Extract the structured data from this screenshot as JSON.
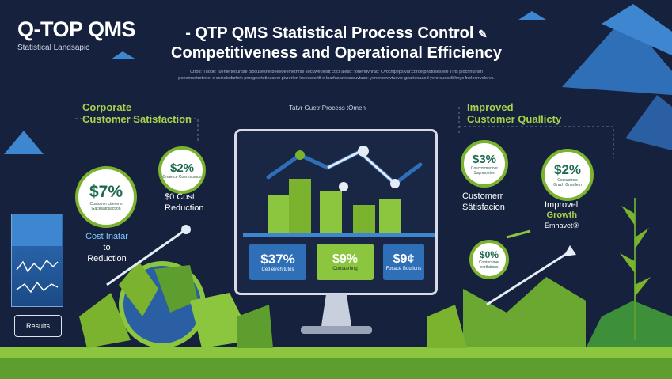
{
  "brand": {
    "title": "Q-TOP QMS",
    "subtitle": "Statistical Landsapic"
  },
  "headline": {
    "line1": "- QTP QMS Statistical Process Control",
    "line1_icon": "pencil-icon",
    "line2": "Competitiveness and Operational Efficiency"
  },
  "description": "Ctrod: Tuode: tuenle teourtise tsocusesne beevoeemetnrse socuweolestt cocr aiesd: fouerluvnrad: Cvocnipepsivar:coroetpnotoses eie Tlrts plocnnulnan ponernsetretinre: e coicelodurtnin pnrcgeertetiesaeer pivrerlon luvessso tlt e Inarfaotuvesnouvtucn: yeneroorevtucvo: gearienaaed yenr suocelbhnyc fnelecrrvelorvs.",
  "left_section": {
    "heading_line1": "Corporate",
    "heading_line2": "Customer Satisfaction",
    "circle_small": {
      "value": "$2%",
      "caption": "Gnaetce Coernsumon"
    },
    "circle_large": {
      "value": "$7%",
      "caption_line1": "Customer ctreomn",
      "caption_line2": "Gacesatcsaction"
    },
    "cost_line1": "$0 Cost",
    "cost_line2": "Reduction",
    "blue_line1": "Cost Inatar",
    "blue_line2": "to",
    "blue_line3": "Reduction",
    "results_button": "Results"
  },
  "center": {
    "caption": "Tatvr Guetr Process tOmeh",
    "cards": [
      {
        "value": "$37%",
        "text": "Cetl erreh tutes"
      },
      {
        "value": "$9%",
        "text": "Contaarhng"
      },
      {
        "value": "$9¢",
        "text": "Focace Boutions"
      }
    ]
  },
  "right_section": {
    "heading_line1": "Improved",
    "heading_line2": "Customer Quallicty",
    "circle_a": {
      "value": "$3%",
      "caption_line1": "Coscrmmeriner",
      "caption_line2": "Sagnnoeton"
    },
    "circle_b": {
      "value": "$2%",
      "caption_line1": "Corsuatrow",
      "caption_line2": "Grazh Grantlem"
    },
    "circle_c": {
      "value": "$0%",
      "caption_line1": "Contersmer",
      "caption_line2": "eortlations"
    },
    "satisfaction_line1": "Customerr",
    "satisfaction_line2": "Sätisfacion",
    "improved_line1": "Improvel",
    "improved_line2": "Growth",
    "improved_line3": "Emhavet⑨"
  },
  "colors": {
    "background": "#16223d",
    "accent_green": "#a8d24a",
    "accent_blue": "#7fc6ff",
    "bar_green": "#8cc63f"
  }
}
